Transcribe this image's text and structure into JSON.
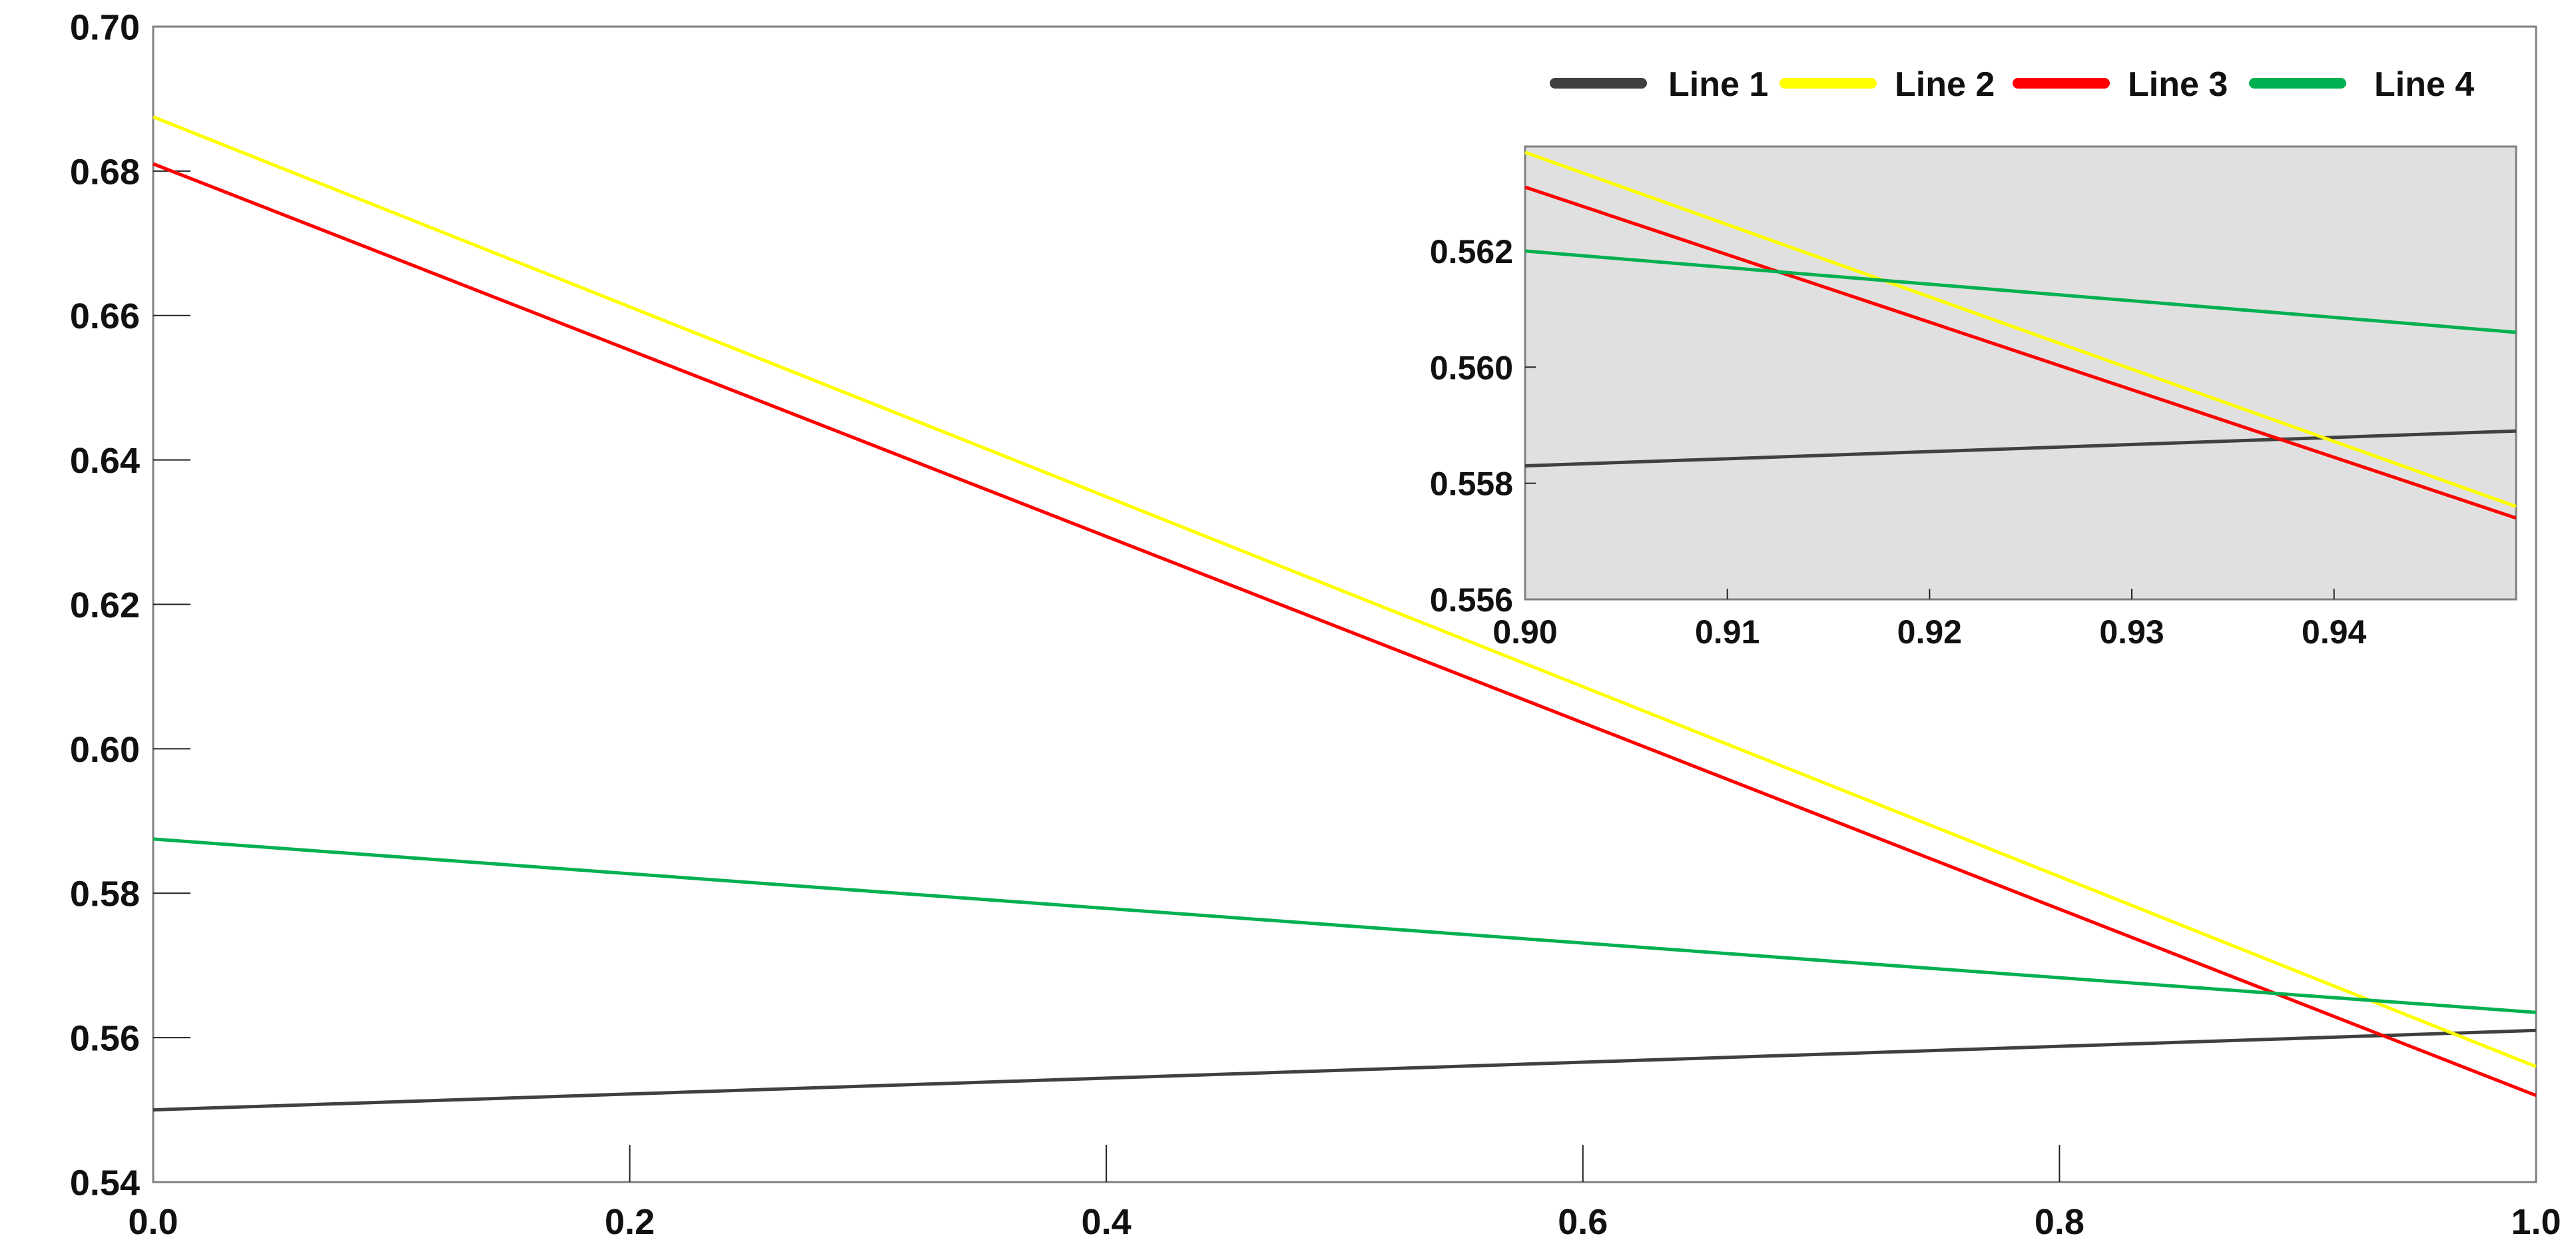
{
  "chart_data": [
    {
      "type": "line",
      "role": "main",
      "xlim": [
        0.0,
        1.0
      ],
      "ylim": [
        0.54,
        0.7
      ],
      "x_ticks": [
        "0.0",
        "0.2",
        "0.4",
        "0.6",
        "0.8",
        "1.0"
      ],
      "y_ticks": [
        "0.54",
        "0.56",
        "0.58",
        "0.60",
        "0.62",
        "0.64",
        "0.66",
        "0.68",
        "0.70"
      ],
      "grid": false,
      "legend_position": "top-right",
      "series": [
        {
          "name": "Line 1",
          "color": "#404040",
          "x": [
            0.0,
            1.0
          ],
          "y": [
            0.55,
            0.561
          ]
        },
        {
          "name": "Line 2",
          "color": "#ffff00",
          "x": [
            0.0,
            1.0
          ],
          "y": [
            0.6875,
            0.556
          ]
        },
        {
          "name": "Line 3",
          "color": "#ff0000",
          "x": [
            0.0,
            1.0
          ],
          "y": [
            0.681,
            0.552
          ]
        },
        {
          "name": "Line 4",
          "color": "#00b050",
          "x": [
            0.0,
            1.0
          ],
          "y": [
            0.5875,
            0.5635
          ]
        }
      ]
    },
    {
      "type": "line",
      "role": "inset",
      "background": "#e0e0e0",
      "xlim": [
        0.9,
        0.949
      ],
      "ylim": [
        0.556,
        0.5638
      ],
      "x_ticks": [
        "0.90",
        "0.91",
        "0.92",
        "0.93",
        "0.94"
      ],
      "y_ticks": [
        "0.556",
        "0.558",
        "0.560",
        "0.562"
      ],
      "grid": false,
      "series": [
        {
          "name": "Line 1",
          "color": "#404040",
          "x": [
            0.9,
            0.949
          ],
          "y": [
            0.5583,
            0.5589
          ]
        },
        {
          "name": "Line 2",
          "color": "#ffff00",
          "x": [
            0.9,
            0.949
          ],
          "y": [
            0.5637,
            0.5576
          ]
        },
        {
          "name": "Line 3",
          "color": "#ff0000",
          "x": [
            0.9,
            0.949
          ],
          "y": [
            0.5631,
            0.5574
          ]
        },
        {
          "name": "Line 4",
          "color": "#00b050",
          "x": [
            0.9,
            0.949
          ],
          "y": [
            0.562,
            0.5606
          ]
        }
      ]
    }
  ]
}
